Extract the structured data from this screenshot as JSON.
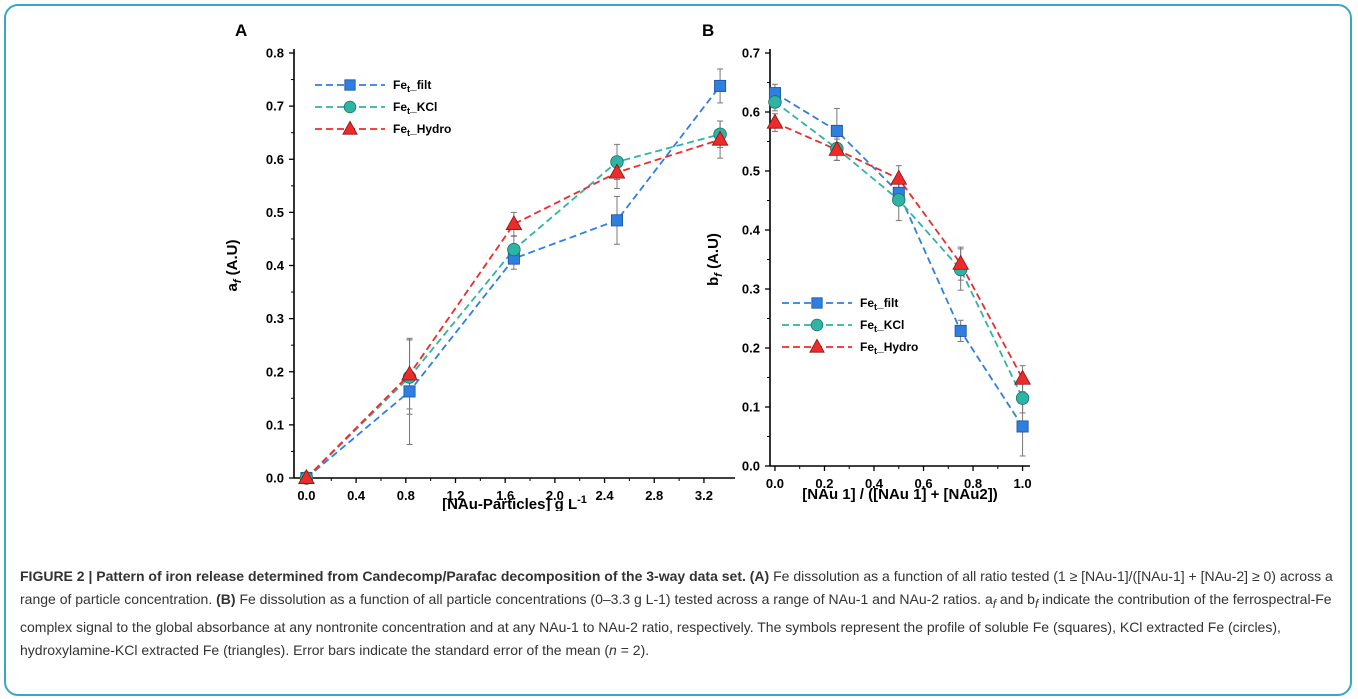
{
  "chart_data": [
    {
      "panel": "A",
      "type": "line",
      "ylabel_main": "a",
      "ylabel_sub": "f",
      "ylabel_suffix": " (A.U)",
      "xlabel_main": "[NAu-Particles] g L",
      "xlabel_sup": "-1",
      "xlim": [
        -0.1,
        3.45
      ],
      "ylim": [
        0,
        0.8
      ],
      "xticks": [
        "0.0",
        "0.4",
        "0.8",
        "1.2",
        "1.6",
        "2.0",
        "2.4",
        "2.8",
        "3.2"
      ],
      "yticks": [
        "0.0",
        "0.1",
        "0.2",
        "0.3",
        "0.4",
        "0.5",
        "0.6",
        "0.7",
        "0.8"
      ],
      "legend_position": "top-left",
      "x": [
        0.0,
        0.83,
        1.67,
        2.5,
        3.33
      ],
      "series": [
        {
          "name": "Fe",
          "name_sub": "t",
          "name_suffix": "_filt",
          "marker": "square",
          "color": "#2f7fe0",
          "values": [
            0.0,
            0.163,
            0.413,
            0.485,
            0.738
          ],
          "err": [
            0.0,
            0.1,
            0.02,
            0.045,
            0.032
          ]
        },
        {
          "name": "Fe",
          "name_sub": "t",
          "name_suffix": "_KCl",
          "marker": "circle",
          "color": "#2fb4a4",
          "values": [
            0.0,
            0.19,
            0.43,
            0.595,
            0.647
          ],
          "err": [
            0.0,
            0.07,
            0.025,
            0.033,
            0.025
          ]
        },
        {
          "name": "Fe",
          "name_sub": "t",
          "name_suffix": "_Hydro",
          "marker": "triangle",
          "color": "#ee2b2b",
          "values": [
            0.0,
            0.195,
            0.478,
            0.575,
            0.637
          ],
          "err": [
            0.0,
            0.065,
            0.022,
            0.03,
            0.035
          ]
        }
      ]
    },
    {
      "panel": "B",
      "type": "line",
      "ylabel_main": "b",
      "ylabel_sub": "f",
      "ylabel_suffix": " (A.U)",
      "xlabel_main": "[NAu 1] / ([NAu 1] + [NAu2])",
      "xlabel_sup": "",
      "xlim": [
        -0.02,
        1.03
      ],
      "ylim": [
        0,
        0.7
      ],
      "xticks": [
        "0.0",
        "0.2",
        "0.4",
        "0.6",
        "0.8",
        "1.0"
      ],
      "yticks": [
        "0.0",
        "0.1",
        "0.2",
        "0.3",
        "0.4",
        "0.5",
        "0.6",
        "0.7"
      ],
      "legend_position": "center-left",
      "x": [
        0.0,
        0.25,
        0.5,
        0.75,
        1.0
      ],
      "series": [
        {
          "name": "Fe",
          "name_sub": "t",
          "name_suffix": "_filt",
          "marker": "square",
          "color": "#2f7fe0",
          "values": [
            0.632,
            0.568,
            0.463,
            0.229,
            0.067
          ],
          "err": [
            0.015,
            0.038,
            0.02,
            0.018,
            0.05
          ]
        },
        {
          "name": "Fe",
          "name_sub": "t",
          "name_suffix": "_KCl",
          "marker": "circle",
          "color": "#2fb4a4",
          "values": [
            0.617,
            0.538,
            0.451,
            0.333,
            0.115
          ],
          "err": [
            0.015,
            0.02,
            0.035,
            0.035,
            0.025
          ]
        },
        {
          "name": "Fe",
          "name_sub": "t",
          "name_suffix": "_Hydro",
          "marker": "triangle",
          "color": "#ee2b2b",
          "values": [
            0.582,
            0.536,
            0.487,
            0.343,
            0.148
          ],
          "err": [
            0.015,
            0.018,
            0.022,
            0.028,
            0.022
          ]
        }
      ]
    }
  ],
  "caption": {
    "title": "FIGURE 2 | Pattern of iron release determined from Candecomp/Parafac decomposition of the 3-way data set.",
    "a_label": "(A)",
    "a_text": " Fe dissolution as a function of all ratio tested (1 ≥ [NAu-1]/([NAu-1] + [NAu-2] ≥ 0) across a range of particle concentration. ",
    "b_label": "(B)",
    "b_text": " Fe dissolution as a function of all particle concentrations (0–3.3 g L-1) tested across a range of NAu-1 and NAu-2 ratios. a",
    "sub_f1": "f",
    "and_b": " and b",
    "sub_f2": "f",
    "rest": " indicate the contribution of the ferrospectral-Fe complex signal to the global absorbance at any nontronite concentration and at any NAu-1 to NAu-2 ratio, respectively. The symbols represent the profile of soluble Fe (squares), KCl extracted Fe (circles), hydroxylamine-KCl extracted Fe (triangles). Error bars indicate the standard error of the mean (",
    "n_var": "n",
    "n_rest": " = 2)."
  }
}
